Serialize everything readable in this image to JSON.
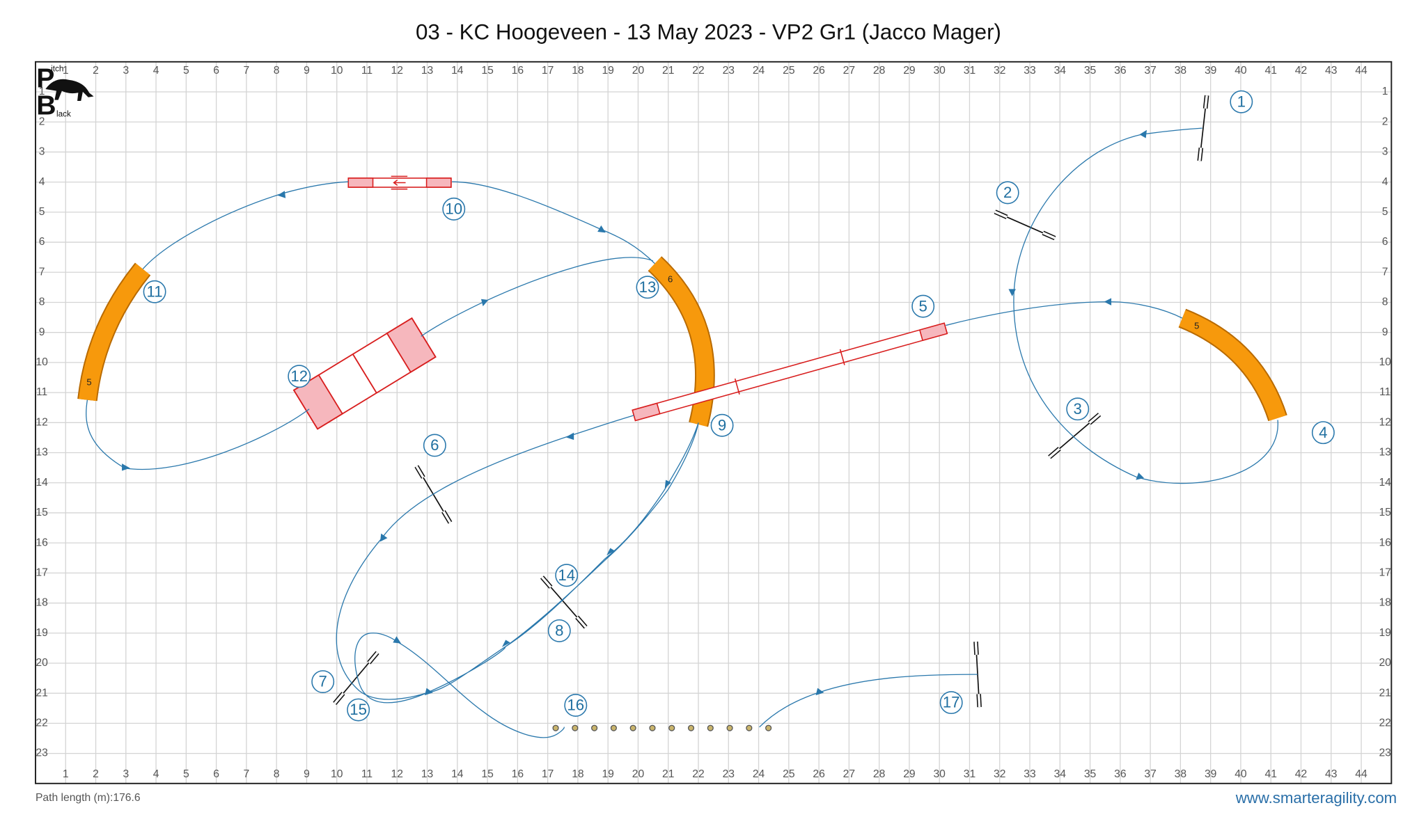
{
  "title": "03 - KC Hoogeveen - 13 May 2023 - VP2 Gr1 (Jacco Mager)",
  "grid": {
    "columns": [
      1,
      2,
      3,
      4,
      5,
      6,
      7,
      8,
      9,
      10,
      11,
      12,
      13,
      14,
      15,
      16,
      17,
      18,
      19,
      20,
      21,
      22,
      23,
      24,
      25,
      26,
      27,
      28,
      29,
      30,
      31,
      32,
      33,
      34,
      35,
      36,
      37,
      38,
      39,
      40,
      41,
      42,
      43,
      44
    ],
    "rows": [
      1,
      2,
      3,
      4,
      5,
      6,
      7,
      8,
      9,
      10,
      11,
      12,
      13,
      14,
      15,
      16,
      17,
      18,
      19,
      20,
      21,
      22,
      23
    ]
  },
  "logo": {
    "letter_top": "P",
    "text_top": "itch",
    "letter_bottom": "B",
    "text_bottom": "lack"
  },
  "numbers": [
    "1",
    "2",
    "3",
    "4",
    "5",
    "6",
    "7",
    "8",
    "9",
    "10",
    "11",
    "12",
    "13",
    "14",
    "15",
    "16",
    "17"
  ],
  "tunnel_labels": [
    "5",
    "6",
    "5"
  ],
  "footer": {
    "path_length": "Path length (m):176.6",
    "site": "www.smarteragility.com"
  }
}
